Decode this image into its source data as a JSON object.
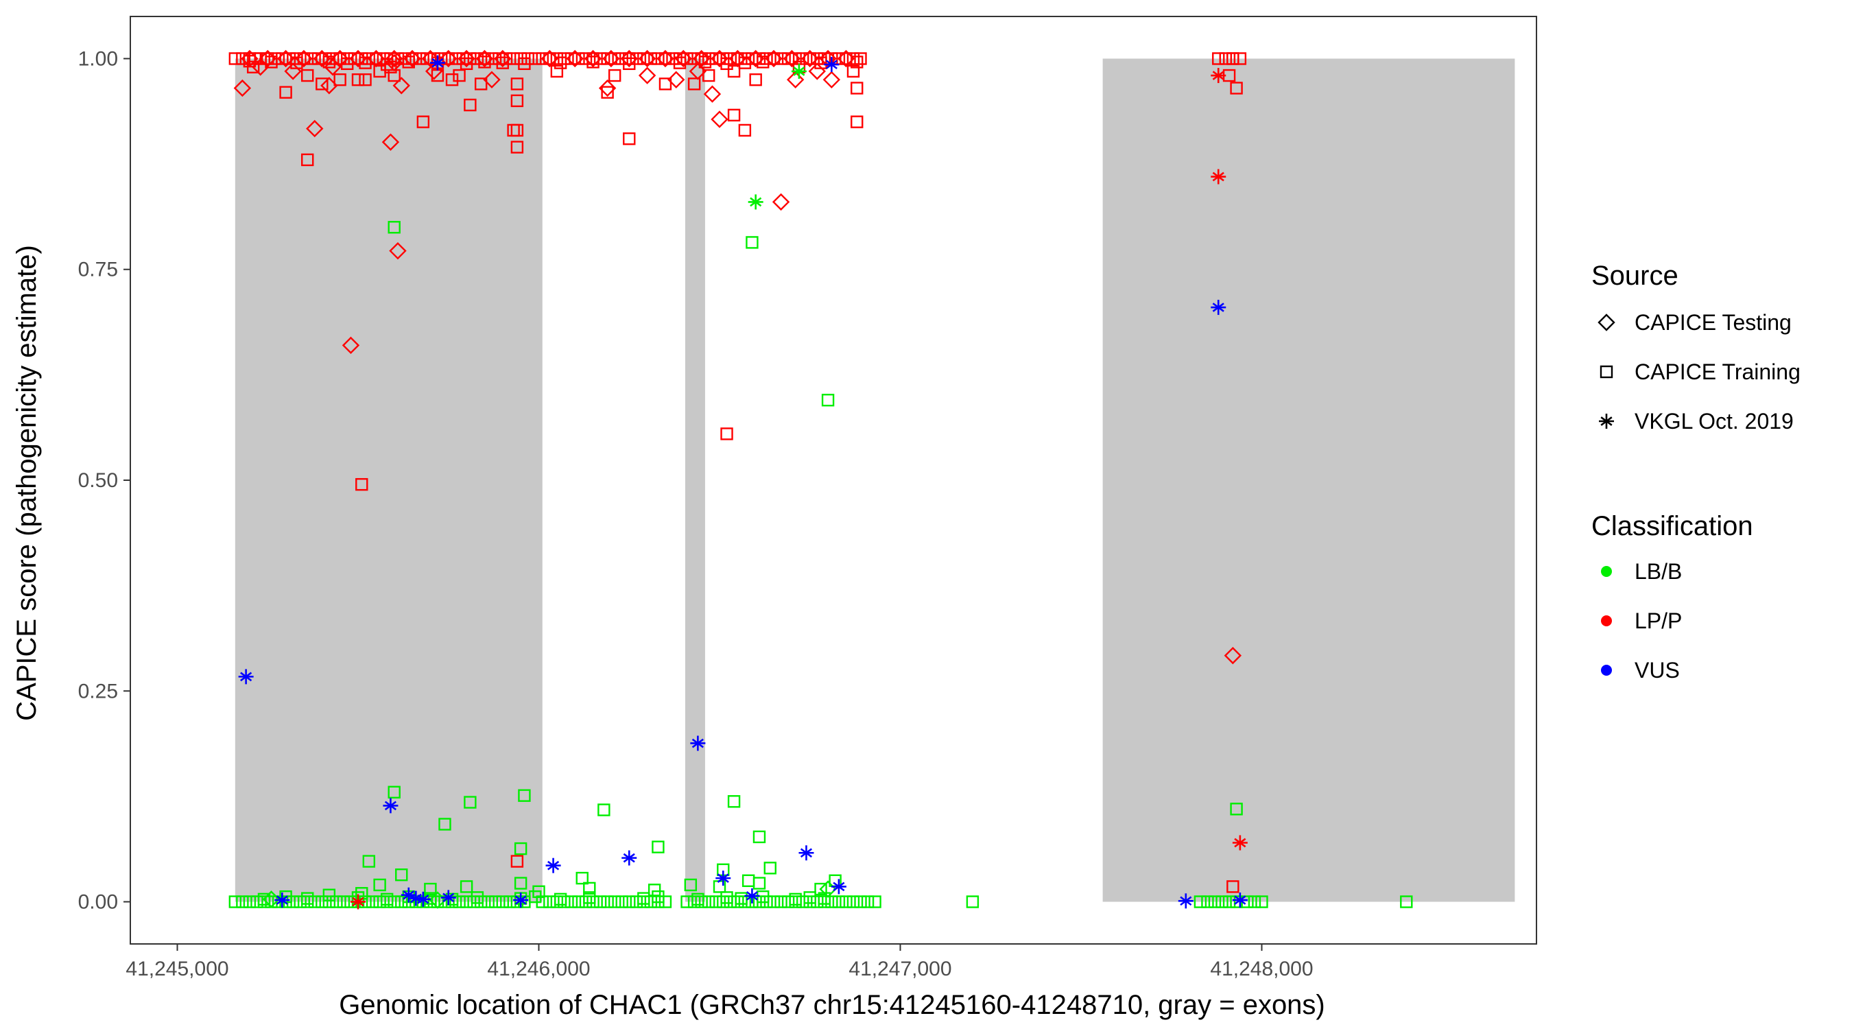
{
  "chart_data": {
    "type": "scatter",
    "xlabel": "Genomic location of CHAC1 (GRCh37 chr15:41245160-41248710, gray = exons)",
    "ylabel": "CAPICE score (pathogenicity estimate)",
    "xlim": [
      44870,
      48760
    ],
    "ylim": [
      -0.05,
      1.05
    ],
    "x_ticks": [
      45000,
      46000,
      47000,
      48000
    ],
    "x_tick_labels": [
      "41,245,000",
      "41,246,000",
      "41,247,000",
      "41,248,000"
    ],
    "y_ticks": [
      0,
      0.25,
      0.5,
      0.75,
      1.0
    ],
    "y_tick_labels": [
      "0.00",
      "0.25",
      "0.50",
      "0.75",
      "1.00"
    ],
    "x_offset_note": "",
    "grid": false,
    "exons": [
      [
        45160,
        46010
      ],
      [
        46405,
        46460
      ],
      [
        47560,
        48700
      ]
    ],
    "exon_y_range": [
      0,
      1
    ],
    "colors": {
      "exon": "#c8c8c8",
      "LB/B": "#00ee00",
      "LP/P": "#ff0000",
      "VUS": "#0000ff",
      "axis": "#333333"
    },
    "legend": {
      "placement": "right",
      "source_title": "Source",
      "source_items": [
        {
          "label": "CAPICE Testing",
          "shape": "diamond"
        },
        {
          "label": "CAPICE Training",
          "shape": "square"
        },
        {
          "label": "VKGL Oct. 2019",
          "shape": "asterisk"
        }
      ],
      "class_title": "Classification",
      "class_items": [
        {
          "label": "LB/B",
          "color": "#00ee00"
        },
        {
          "label": "LP/P",
          "color": "#ff0000"
        },
        {
          "label": "VUS",
          "color": "#0000ff"
        }
      ]
    },
    "series": [
      {
        "source": "CAPICE Training",
        "classification": "LP/P",
        "x": [
          45160,
          45180,
          45200,
          45215,
          45230,
          45250,
          45270,
          45290,
          45310,
          45330,
          45350,
          45370,
          45390,
          45410,
          45430,
          45450,
          45470,
          45490,
          45510,
          45530,
          45550,
          45570,
          45590,
          45610,
          45630,
          45650,
          45670,
          45690,
          45710,
          45730,
          45750,
          45770,
          45790,
          45810,
          45830,
          45850,
          45870,
          45890,
          45910,
          45930,
          45950,
          45970,
          45990,
          46010,
          46030,
          46050,
          46070,
          46090,
          46110,
          46130,
          46150,
          46170,
          46190,
          46210,
          46230,
          46250,
          46270,
          46290,
          46310,
          46330,
          46350,
          46370,
          46390,
          46410,
          46430,
          46450,
          46470,
          46490,
          46510,
          46530,
          46550,
          46570,
          46590,
          46610,
          46630,
          46650,
          46670,
          46690,
          46710,
          46730,
          46750,
          46770,
          46790,
          46810,
          46830,
          46850,
          46870,
          46890,
          47880,
          47900,
          47920,
          47940,
          45200,
          45260,
          45330,
          45420,
          45470,
          45520,
          45580,
          45640,
          45720,
          45800,
          45850,
          45900,
          45960,
          46060,
          46150,
          46250,
          46390,
          46460,
          46520,
          46570,
          46620,
          46780,
          46880,
          45210,
          45360,
          45450,
          45560,
          45590,
          45720,
          45760,
          45940,
          46050,
          46210,
          46350,
          46470,
          46540,
          46600,
          46720,
          46870,
          47920,
          45300,
          45400,
          45520,
          45600,
          45780,
          45840,
          45940,
          46190,
          46430,
          46880,
          45360,
          45940,
          45500,
          45940,
          46570,
          47930
        ],
        "y": [
          1,
          1,
          1,
          1,
          1,
          1,
          1,
          1,
          1,
          1,
          1,
          1,
          1,
          1,
          1,
          1,
          1,
          1,
          1,
          1,
          1,
          1,
          1,
          1,
          1,
          1,
          1,
          1,
          1,
          1,
          1,
          1,
          1,
          1,
          1,
          1,
          1,
          1,
          1,
          1,
          1,
          1,
          1,
          1,
          1,
          1,
          1,
          1,
          1,
          1,
          1,
          1,
          1,
          1,
          1,
          1,
          1,
          1,
          1,
          1,
          1,
          1,
          1,
          1,
          1,
          1,
          1,
          1,
          1,
          1,
          1,
          1,
          1,
          1,
          1,
          1,
          1,
          1,
          1,
          1,
          1,
          1,
          1,
          1,
          1,
          1,
          1,
          1,
          1,
          1,
          1,
          1,
          0.997,
          0.996,
          0.995,
          0.996,
          0.994,
          0.995,
          0.993,
          0.996,
          0.995,
          0.994,
          0.996,
          0.995,
          0.994,
          0.995,
          0.996,
          0.994,
          0.995,
          0.996,
          0.994,
          0.995,
          0.996,
          0.995,
          0.996,
          0.99,
          0.98,
          0.975,
          0.985,
          0.99,
          0.98,
          0.975,
          0.97,
          0.985,
          0.98,
          0.97,
          0.98,
          0.985,
          0.975,
          0.99,
          0.985,
          1.0,
          0.96,
          0.97,
          0.975,
          0.98,
          0.98,
          0.97,
          0.95,
          0.96,
          0.97,
          0.965,
          0.88,
          0.895,
          0.975,
          0.915,
          0.915,
          0.965
        ],
        "extra": {
          "x": [
            45810,
            45930,
            46250,
            46880,
            45680,
            46540,
            47910,
            46520,
            45510,
            45940,
            47920
          ],
          "y": [
            0.945,
            0.915,
            0.905,
            0.925,
            0.925,
            0.933,
            0.98,
            0.555,
            0.495,
            0.048,
            0.018
          ]
        }
      },
      {
        "source": "CAPICE Training",
        "classification": "LB/B",
        "x": [
          45160,
          45180,
          45200,
          45220,
          45240,
          45260,
          45280,
          45300,
          45320,
          45340,
          45360,
          45380,
          45400,
          45420,
          45440,
          45460,
          45480,
          45500,
          45520,
          45540,
          45560,
          45580,
          45600,
          45620,
          45640,
          45660,
          45680,
          45700,
          45720,
          45740,
          45760,
          45780,
          45800,
          45820,
          45840,
          45860,
          45880,
          45900,
          45920,
          45940,
          45960,
          46010,
          46030,
          46050,
          46070,
          46090,
          46110,
          46130,
          46150,
          46170,
          46190,
          46210,
          46230,
          46250,
          46270,
          46290,
          46310,
          46330,
          46350,
          46410,
          46430,
          46450,
          46470,
          46490,
          46510,
          46530,
          46550,
          46570,
          46590,
          46610,
          46630,
          46650,
          46670,
          46690,
          46710,
          46730,
          46750,
          46770,
          46790,
          46810,
          46830,
          46850,
          46870,
          46890,
          46910,
          46930,
          47200,
          47830,
          47850,
          47870,
          47890,
          47910,
          47930,
          47960,
          47980,
          48000,
          48400,
          45240,
          45300,
          45360,
          45420,
          45500,
          45580,
          45640,
          45700,
          45760,
          45830,
          45950,
          45990,
          46060,
          46140,
          46290,
          46330,
          46440,
          46520,
          46560,
          46620,
          46710,
          46750,
          46790,
          45510,
          45560,
          45700,
          45800,
          45950,
          46000,
          46140,
          46320,
          46420,
          46500,
          46580,
          46610,
          46780,
          45620,
          46120,
          45530,
          45950,
          46510,
          45600,
          46640,
          46820,
          47930
        ],
        "y": [
          0,
          0,
          0,
          0,
          0,
          0,
          0,
          0,
          0,
          0,
          0,
          0,
          0,
          0,
          0,
          0,
          0,
          0,
          0,
          0,
          0,
          0,
          0,
          0,
          0,
          0,
          0,
          0,
          0,
          0,
          0,
          0,
          0,
          0,
          0,
          0,
          0,
          0,
          0,
          0,
          0,
          0,
          0,
          0,
          0,
          0,
          0,
          0,
          0,
          0,
          0,
          0,
          0,
          0,
          0,
          0,
          0,
          0,
          0,
          0,
          0,
          0,
          0,
          0,
          0,
          0,
          0,
          0,
          0,
          0,
          0,
          0,
          0,
          0,
          0,
          0,
          0,
          0,
          0,
          0,
          0,
          0,
          0,
          0,
          0,
          0,
          0,
          0,
          0,
          0,
          0,
          0,
          0,
          0,
          0,
          0,
          0,
          0.003,
          0.006,
          0.004,
          0.008,
          0.005,
          0.003,
          0.006,
          0.004,
          0.003,
          0.005,
          0.004,
          0.006,
          0.003,
          0.005,
          0.004,
          0.006,
          0.003,
          0.005,
          0.004,
          0.006,
          0.003,
          0.005,
          0.004,
          0.01,
          0.02,
          0.015,
          0.018,
          0.022,
          0.012,
          0.016,
          0.014,
          0.02,
          0.018,
          0.025,
          0.022,
          0.015,
          0.032,
          0.028,
          0.048,
          0.063,
          0.038,
          0.13,
          0.04,
          0.025,
          0.11
        ],
        "extra": {
          "x": [
            45740,
            45810,
            45960,
            46180,
            46330,
            46540,
            46590,
            46610,
            45600,
            46800
          ],
          "y": [
            0.092,
            0.118,
            0.126,
            0.109,
            0.065,
            0.119,
            0.782,
            0.077,
            0.8,
            0.595
          ]
        }
      },
      {
        "source": "CAPICE Testing",
        "classification": "LP/P",
        "x": [
          45200,
          45250,
          45300,
          45350,
          45400,
          45450,
          45500,
          45550,
          45600,
          45650,
          45700,
          45750,
          45800,
          45850,
          45900,
          46030,
          46100,
          46150,
          46200,
          46250,
          46300,
          46350,
          46400,
          46450,
          46500,
          46550,
          46600,
          46650,
          46700,
          46750,
          46800,
          46850,
          45230,
          45320,
          45430,
          45600,
          45710,
          45870,
          46190,
          46300,
          46380,
          46440,
          46710,
          46770,
          46810,
          45180,
          45420,
          45620,
          46480,
          46500,
          45380,
          45590,
          45610,
          45480,
          46670,
          47920
        ],
        "y": [
          1,
          1,
          1,
          1,
          1,
          1,
          1,
          1,
          1,
          1,
          1,
          1,
          1,
          1,
          1,
          1,
          1,
          1,
          1,
          1,
          1,
          1,
          1,
          1,
          1,
          1,
          1,
          1,
          1,
          1,
          1,
          1,
          0.99,
          0.985,
          0.99,
          0.995,
          0.985,
          0.975,
          0.965,
          0.98,
          0.975,
          0.985,
          0.975,
          0.985,
          0.975,
          0.965,
          0.968,
          0.968,
          0.958,
          0.928,
          0.917,
          0.901,
          0.772,
          0.66,
          0.83,
          0.292
        ]
      },
      {
        "source": "CAPICE Testing",
        "classification": "LB/B",
        "x": [
          45260,
          45720,
          46800
        ],
        "y": [
          0.003,
          0.002,
          0.015
        ]
      },
      {
        "source": "VKGL Oct. 2019",
        "classification": "LP/P",
        "x": [
          45500,
          47880,
          47880,
          47940
        ],
        "y": [
          0.0,
          0.98,
          0.86,
          0.07
        ]
      },
      {
        "source": "VKGL Oct. 2019",
        "classification": "LB/B",
        "x": [
          46600,
          46720
        ],
        "y": [
          0.83,
          0.985
        ]
      },
      {
        "source": "VKGL Oct. 2019",
        "classification": "VUS",
        "x": [
          45190,
          45290,
          45640,
          45660,
          45680,
          45750,
          45720,
          45590,
          45950,
          46040,
          46250,
          46440,
          46510,
          46590,
          46740,
          46810,
          46830,
          47880,
          47790,
          47940
        ],
        "y": [
          0.267,
          0.002,
          0.008,
          0.004,
          0.003,
          0.005,
          0.995,
          0.114,
          0.002,
          0.043,
          0.052,
          0.188,
          0.028,
          0.007,
          0.058,
          0.993,
          0.018,
          0.705,
          0.001,
          0.002
        ]
      }
    ]
  }
}
